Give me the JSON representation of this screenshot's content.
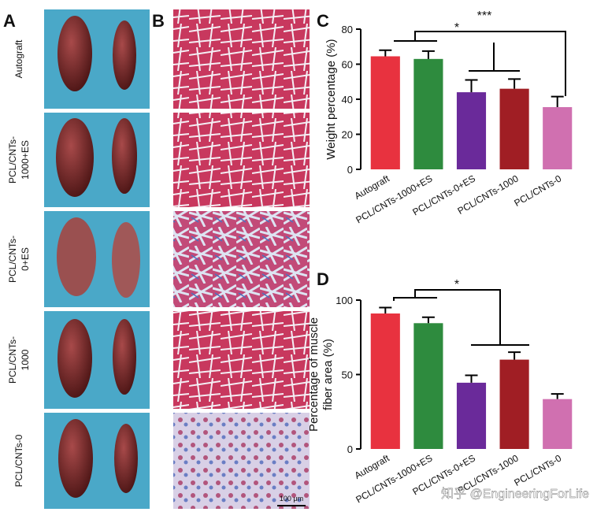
{
  "panel_labels": [
    "A",
    "B",
    "C",
    "D"
  ],
  "groups": [
    [
      "Autograft"
    ],
    [
      "PCL/CNTs-",
      "1000+ES"
    ],
    [
      "PCL/CNTs-",
      "0+ES"
    ],
    [
      "PCL/CNTs-",
      "1000"
    ],
    [
      "PCL/CNTs-0"
    ]
  ],
  "scale_bar": "100 μm",
  "watermark": "知乎 @EngineeringForLife",
  "chart_data": [
    {
      "type": "bar",
      "ylabel": [
        "Weight percentage (%)"
      ],
      "categories": [
        "Autograft",
        "PCL/CNTs-1000+ES",
        "PCL/CNTs-0+ES",
        "PCL/CNTs-1000",
        "PCL/CNTs-0"
      ],
      "values": [
        64.5,
        63,
        44,
        46,
        35.5
      ],
      "errors": [
        3.5,
        4.5,
        7,
        5.5,
        6
      ],
      "colors": [
        "#e8323f",
        "#2e8b3e",
        "#6a2a9a",
        "#a01e24",
        "#d070b0"
      ],
      "ylim": [
        0,
        80
      ],
      "yticks": [
        0,
        20,
        40,
        60,
        80
      ],
      "annotations": [
        "*",
        "***"
      ]
    },
    {
      "type": "bar",
      "ylabel": [
        "Percentage of muscle",
        "fiber area (%)"
      ],
      "categories": [
        "Autograft",
        "PCL/CNTs-1000+ES",
        "PCL/CNTs-0+ES",
        "PCL/CNTs-1000",
        "PCL/CNTs-0"
      ],
      "values": [
        91,
        84.5,
        44.5,
        60,
        33.5
      ],
      "errors": [
        4,
        4,
        5,
        5,
        3.5
      ],
      "colors": [
        "#e8323f",
        "#2e8b3e",
        "#6a2a9a",
        "#a01e24",
        "#d070b0"
      ],
      "ylim": [
        0,
        100
      ],
      "yticks": [
        0,
        50,
        100
      ],
      "annotations": [
        "*"
      ]
    }
  ]
}
